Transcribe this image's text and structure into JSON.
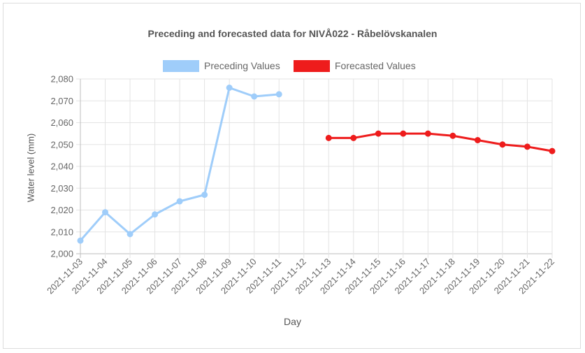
{
  "chart_data": {
    "type": "line",
    "title": "Preceding and forecasted data for NIVÅ022 - Råbelövskanalen",
    "xlabel": "Day",
    "ylabel": "Water level (mm)",
    "ylim": [
      2000,
      2080
    ],
    "yticks": [
      "2,000",
      "2,010",
      "2,020",
      "2,030",
      "2,040",
      "2,050",
      "2,060",
      "2,070",
      "2,080"
    ],
    "categories": [
      "2021-11-03",
      "2021-11-04",
      "2021-11-05",
      "2021-11-06",
      "2021-11-07",
      "2021-11-08",
      "2021-11-09",
      "2021-11-10",
      "2021-11-11",
      "2021-11-12",
      "2021-11-13",
      "2021-11-14",
      "2021-11-15",
      "2021-11-16",
      "2021-11-17",
      "2021-11-18",
      "2021-11-19",
      "2021-11-20",
      "2021-11-21",
      "2021-11-22"
    ],
    "grid": true,
    "legend_position": "top",
    "series": [
      {
        "name": "Preceding Values",
        "color": "#9fcdfa",
        "values": [
          2006,
          2019,
          2009,
          2018,
          2024,
          2027,
          2076,
          2072,
          2073,
          null,
          null,
          null,
          null,
          null,
          null,
          null,
          null,
          null,
          null,
          null
        ]
      },
      {
        "name": "Forecasted Values",
        "color": "#ee1c1c",
        "values": [
          null,
          null,
          null,
          null,
          null,
          null,
          null,
          null,
          null,
          null,
          2053,
          2053,
          2055,
          2055,
          2055,
          2054,
          2052,
          2050,
          2049,
          2047
        ]
      }
    ]
  }
}
